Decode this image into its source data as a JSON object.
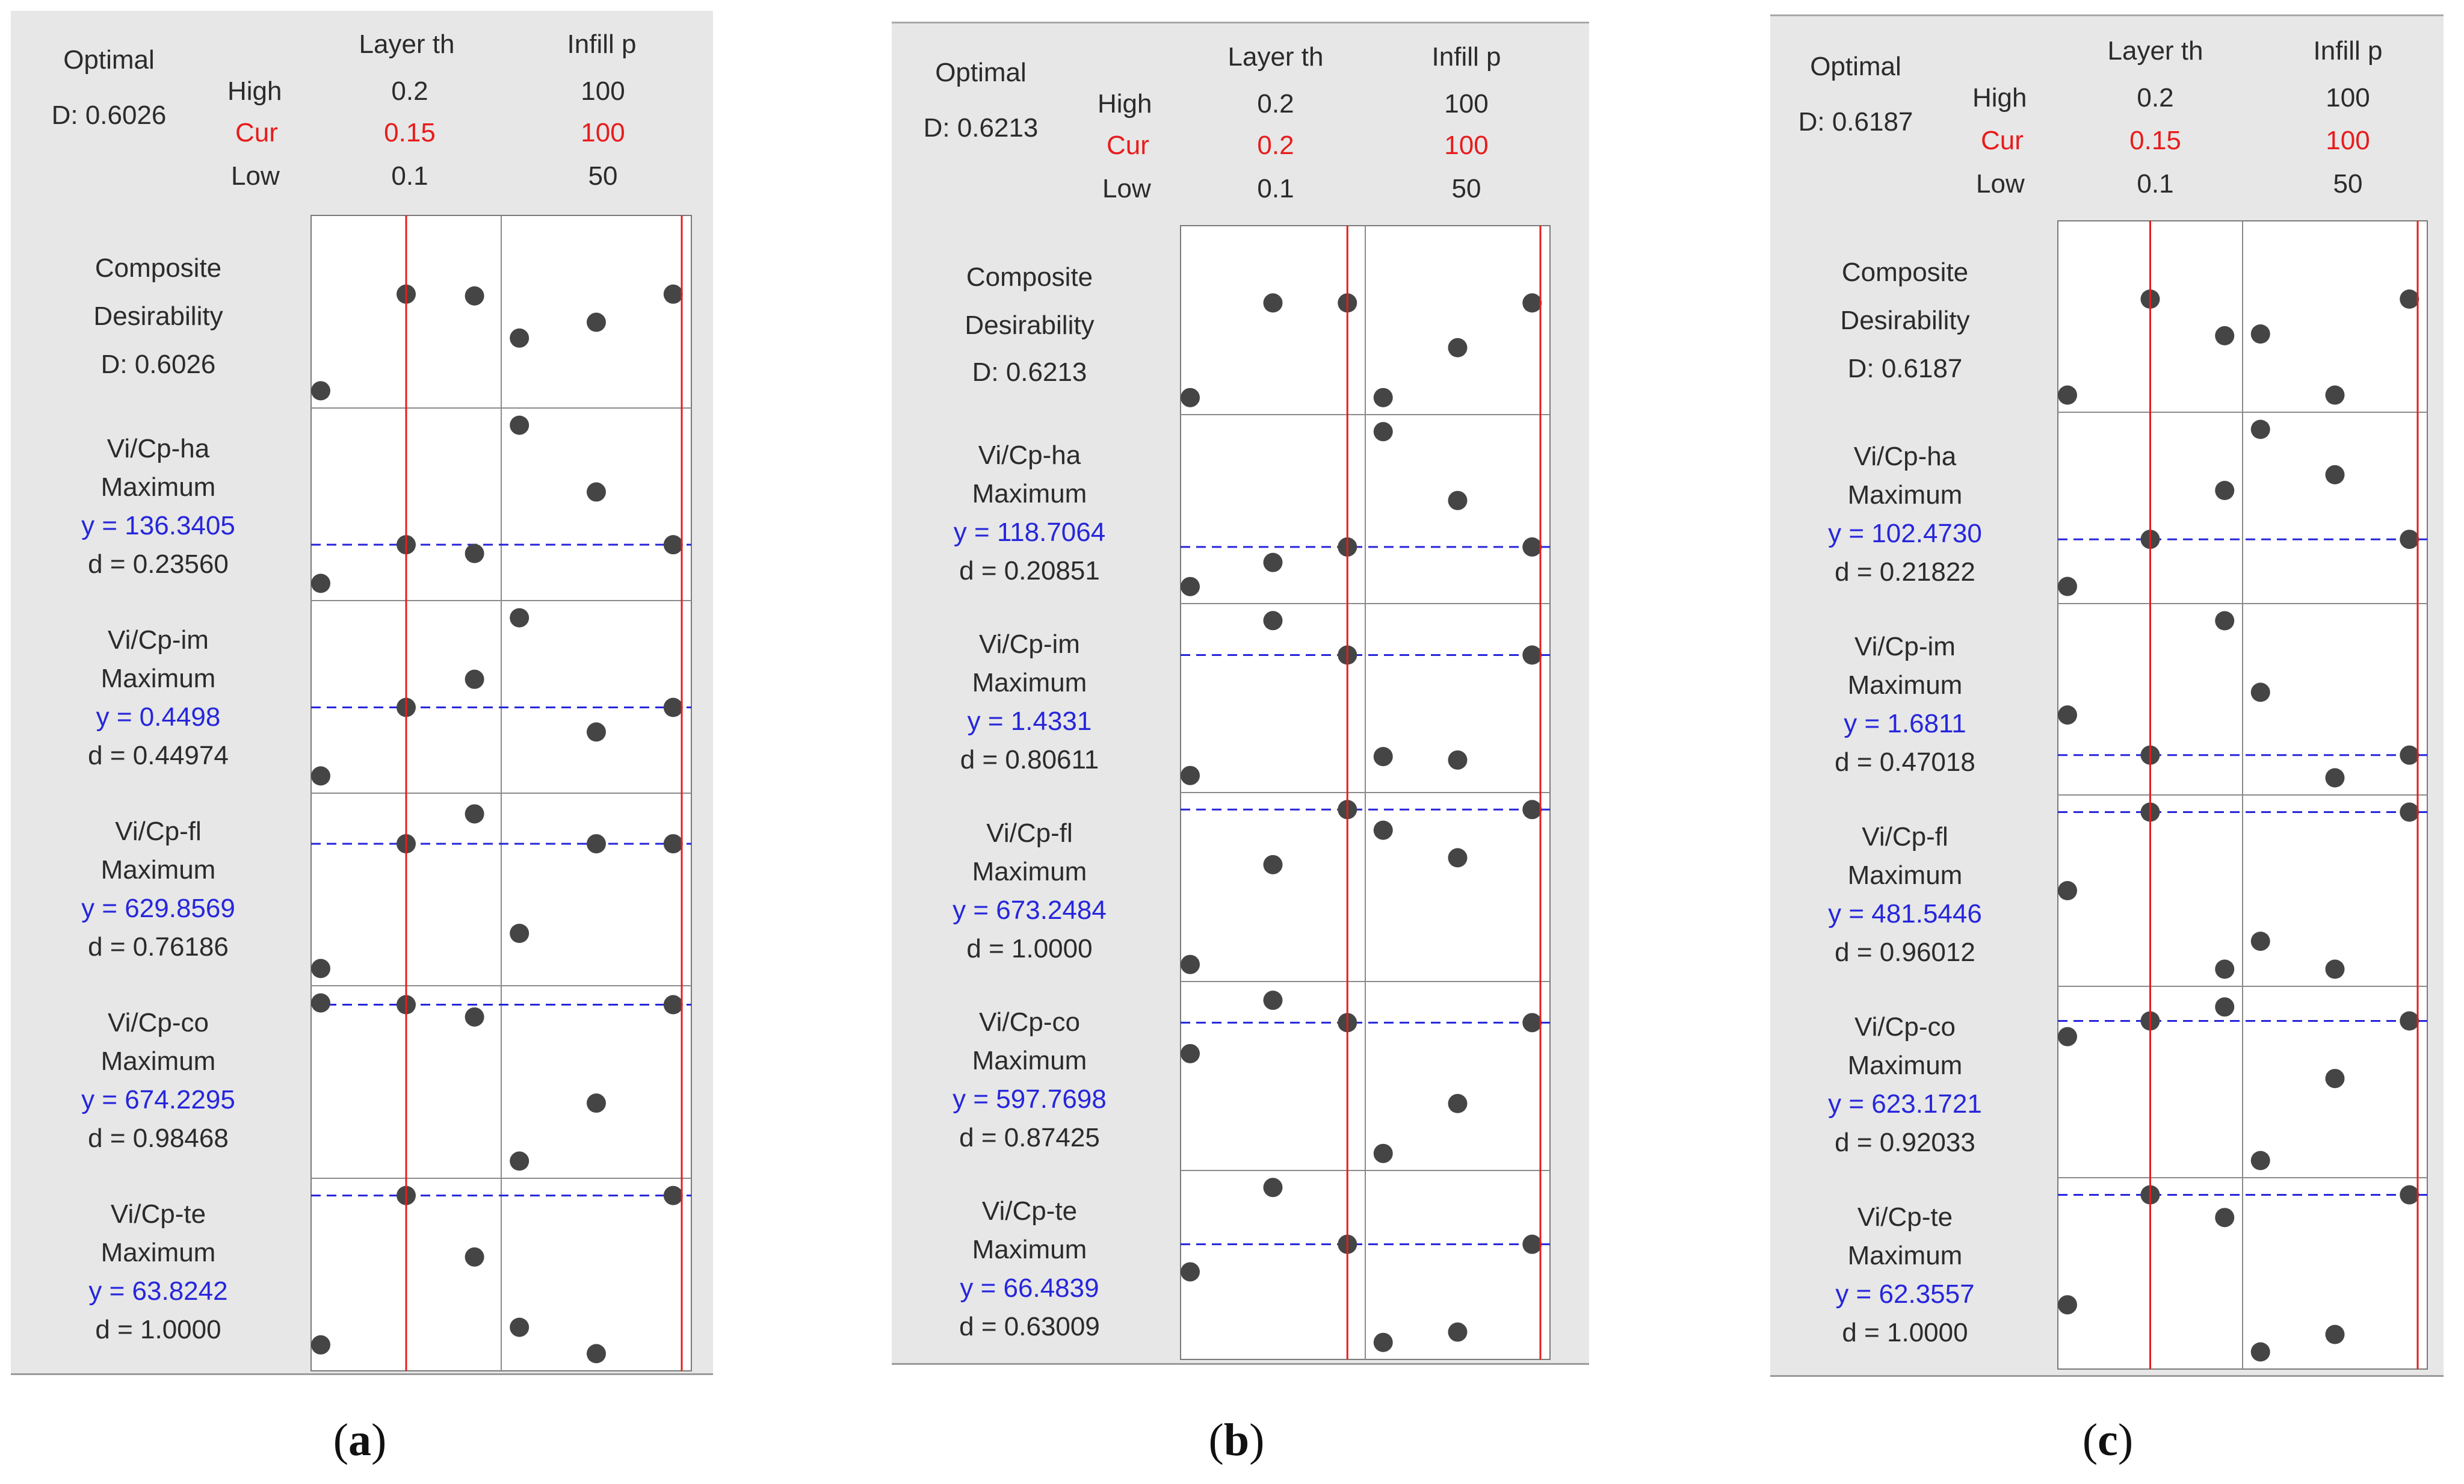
{
  "headers": {
    "optimal": "Optimal",
    "high": "High",
    "cur": "Cur",
    "low": "Low",
    "factor1": "Layer th",
    "factor2": "Infill p"
  },
  "colors": {
    "panel_bg": "#e7e7e7",
    "current_line": "#e81c1c",
    "target_line": "#2626dc",
    "point": "#454545",
    "text": "#2b2b2b"
  },
  "chart_data": [
    {
      "type": "scatter",
      "caption_letter": "a",
      "optimal_d": "D: 0.6026",
      "factors": {
        "layer_th": {
          "high": "0.2",
          "cur": "0.15",
          "low": "0.1"
        },
        "infill_p": {
          "high": "100",
          "cur": "100",
          "low": "50"
        }
      },
      "current_fraction": {
        "layer": 0.5,
        "infill": 1.0
      },
      "rows": [
        {
          "label": [
            "Composite",
            "Desirability"
          ],
          "value_text": "D: 0.6026",
          "composite": true,
          "target": null,
          "points": [
            {
              "p": "L",
              "x": 0,
              "y": 0.05
            },
            {
              "p": "L",
              "x": 0.5,
              "y": 0.6
            },
            {
              "p": "L",
              "x": 0.9,
              "y": 0.59
            },
            {
              "p": "R",
              "x": 0.05,
              "y": 0.35
            },
            {
              "p": "R",
              "x": 0.5,
              "y": 0.44
            },
            {
              "p": "R",
              "x": 0.95,
              "y": 0.6
            }
          ]
        },
        {
          "label": [
            "Vi/Cp-ha",
            "Maximum"
          ],
          "y_text": "y = 136.3405",
          "d_text": "d = 0.23560",
          "target": 0.27,
          "points": [
            {
              "p": "L",
              "x": 0,
              "y": 0.05
            },
            {
              "p": "L",
              "x": 0.5,
              "y": 0.27
            },
            {
              "p": "L",
              "x": 0.9,
              "y": 0.22
            },
            {
              "p": "R",
              "x": 0.05,
              "y": 0.95
            },
            {
              "p": "R",
              "x": 0.5,
              "y": 0.57
            },
            {
              "p": "R",
              "x": 0.95,
              "y": 0.27
            }
          ]
        },
        {
          "label": [
            "Vi/Cp-im",
            "Maximum"
          ],
          "y_text": "y = 0.4498",
          "d_text": "d = 0.44974",
          "target": 0.44,
          "points": [
            {
              "p": "L",
              "x": 0,
              "y": 0.05
            },
            {
              "p": "L",
              "x": 0.5,
              "y": 0.44
            },
            {
              "p": "L",
              "x": 0.9,
              "y": 0.6
            },
            {
              "p": "R",
              "x": 0.05,
              "y": 0.95
            },
            {
              "p": "R",
              "x": 0.5,
              "y": 0.3
            },
            {
              "p": "R",
              "x": 0.95,
              "y": 0.44
            }
          ]
        },
        {
          "label": [
            "Vi/Cp-fl",
            "Maximum"
          ],
          "y_text": "y = 629.8569",
          "d_text": "d = 0.76186",
          "target": 0.76,
          "points": [
            {
              "p": "L",
              "x": 0,
              "y": 0.05
            },
            {
              "p": "L",
              "x": 0.5,
              "y": 0.76
            },
            {
              "p": "L",
              "x": 0.9,
              "y": 0.93
            },
            {
              "p": "R",
              "x": 0.05,
              "y": 0.25
            },
            {
              "p": "R",
              "x": 0.5,
              "y": 0.76
            },
            {
              "p": "R",
              "x": 0.95,
              "y": 0.76
            }
          ]
        },
        {
          "label": [
            "Vi/Cp-co",
            "Maximum"
          ],
          "y_text": "y = 674.2295",
          "d_text": "d = 0.98468",
          "target": 0.94,
          "points": [
            {
              "p": "L",
              "x": 0,
              "y": 0.95
            },
            {
              "p": "L",
              "x": 0.5,
              "y": 0.94
            },
            {
              "p": "L",
              "x": 0.9,
              "y": 0.87
            },
            {
              "p": "R",
              "x": 0.05,
              "y": 0.05
            },
            {
              "p": "R",
              "x": 0.5,
              "y": 0.38
            },
            {
              "p": "R",
              "x": 0.95,
              "y": 0.94
            }
          ]
        },
        {
          "label": [
            "Vi/Cp-te",
            "Maximum"
          ],
          "y_text": "y = 63.8242",
          "d_text": "d = 1.0000",
          "target": 0.95,
          "points": [
            {
              "p": "L",
              "x": 0,
              "y": 0.1
            },
            {
              "p": "L",
              "x": 0.5,
              "y": 0.95
            },
            {
              "p": "L",
              "x": 0.9,
              "y": 0.6
            },
            {
              "p": "R",
              "x": 0.05,
              "y": 0.2
            },
            {
              "p": "R",
              "x": 0.5,
              "y": 0.05
            },
            {
              "p": "R",
              "x": 0.95,
              "y": 0.95
            }
          ]
        }
      ]
    },
    {
      "type": "scatter",
      "caption_letter": "b",
      "optimal_d": "D: 0.6213",
      "factors": {
        "layer_th": {
          "high": "0.2",
          "cur": "0.2",
          "low": "0.1"
        },
        "infill_p": {
          "high": "100",
          "cur": "100",
          "low": "50"
        }
      },
      "current_fraction": {
        "layer": 0.95,
        "infill": 1.0
      },
      "rows": [
        {
          "label": [
            "Composite",
            "Desirability"
          ],
          "value_text": "D: 0.6213",
          "composite": true,
          "target": null,
          "points": [
            {
              "p": "L",
              "x": 0,
              "y": 0.05
            },
            {
              "p": "L",
              "x": 0.5,
              "y": 0.6
            },
            {
              "p": "L",
              "x": 0.95,
              "y": 0.6
            },
            {
              "p": "R",
              "x": 0.05,
              "y": 0.05
            },
            {
              "p": "R",
              "x": 0.5,
              "y": 0.34
            },
            {
              "p": "R",
              "x": 0.95,
              "y": 0.6
            }
          ]
        },
        {
          "label": [
            "Vi/Cp-ha",
            "Maximum"
          ],
          "y_text": "y = 118.7064",
          "d_text": "d = 0.20851",
          "target": 0.28,
          "points": [
            {
              "p": "L",
              "x": 0,
              "y": 0.05
            },
            {
              "p": "L",
              "x": 0.5,
              "y": 0.19
            },
            {
              "p": "L",
              "x": 0.95,
              "y": 0.28
            },
            {
              "p": "R",
              "x": 0.05,
              "y": 0.95
            },
            {
              "p": "R",
              "x": 0.5,
              "y": 0.55
            },
            {
              "p": "R",
              "x": 0.95,
              "y": 0.28
            }
          ]
        },
        {
          "label": [
            "Vi/Cp-im",
            "Maximum"
          ],
          "y_text": "y = 1.4331",
          "d_text": "d = 0.80611",
          "target": 0.75,
          "points": [
            {
              "p": "L",
              "x": 0,
              "y": 0.05
            },
            {
              "p": "L",
              "x": 0.5,
              "y": 0.95
            },
            {
              "p": "L",
              "x": 0.95,
              "y": 0.75
            },
            {
              "p": "R",
              "x": 0.05,
              "y": 0.16
            },
            {
              "p": "R",
              "x": 0.5,
              "y": 0.14
            },
            {
              "p": "R",
              "x": 0.95,
              "y": 0.75
            }
          ]
        },
        {
          "label": [
            "Vi/Cp-fl",
            "Maximum"
          ],
          "y_text": "y = 673.2484",
          "d_text": "d = 1.0000",
          "target": 0.95,
          "points": [
            {
              "p": "L",
              "x": 0,
              "y": 0.05
            },
            {
              "p": "L",
              "x": 0.5,
              "y": 0.63
            },
            {
              "p": "L",
              "x": 0.95,
              "y": 0.95
            },
            {
              "p": "R",
              "x": 0.05,
              "y": 0.83
            },
            {
              "p": "R",
              "x": 0.5,
              "y": 0.67
            },
            {
              "p": "R",
              "x": 0.95,
              "y": 0.95
            }
          ]
        },
        {
          "label": [
            "Vi/Cp-co",
            "Maximum"
          ],
          "y_text": "y = 597.7698",
          "d_text": "d = 0.87425",
          "target": 0.81,
          "points": [
            {
              "p": "L",
              "x": 0,
              "y": 0.63
            },
            {
              "p": "L",
              "x": 0.5,
              "y": 0.94
            },
            {
              "p": "L",
              "x": 0.95,
              "y": 0.81
            },
            {
              "p": "R",
              "x": 0.05,
              "y": 0.05
            },
            {
              "p": "R",
              "x": 0.5,
              "y": 0.34
            },
            {
              "p": "R",
              "x": 0.95,
              "y": 0.81
            }
          ]
        },
        {
          "label": [
            "Vi/Cp-te",
            "Maximum"
          ],
          "y_text": "y = 66.4839",
          "d_text": "d = 0.63009",
          "target": 0.62,
          "points": [
            {
              "p": "L",
              "x": 0,
              "y": 0.46
            },
            {
              "p": "L",
              "x": 0.5,
              "y": 0.95
            },
            {
              "p": "L",
              "x": 0.95,
              "y": 0.62
            },
            {
              "p": "R",
              "x": 0.05,
              "y": 0.05
            },
            {
              "p": "R",
              "x": 0.5,
              "y": 0.11
            },
            {
              "p": "R",
              "x": 0.95,
              "y": 0.62
            }
          ]
        }
      ]
    },
    {
      "type": "scatter",
      "caption_letter": "c",
      "optimal_d": "D: 0.6187",
      "factors": {
        "layer_th": {
          "high": "0.2",
          "cur": "0.15",
          "low": "0.1"
        },
        "infill_p": {
          "high": "100",
          "cur": "100",
          "low": "50"
        }
      },
      "current_fraction": {
        "layer": 0.5,
        "infill": 1.0
      },
      "rows": [
        {
          "label": [
            "Composite",
            "Desirability"
          ],
          "value_text": "D: 0.6187",
          "composite": true,
          "target": null,
          "points": [
            {
              "p": "L",
              "x": 0,
              "y": 0.05
            },
            {
              "p": "L",
              "x": 0.5,
              "y": 0.6
            },
            {
              "p": "L",
              "x": 0.95,
              "y": 0.39
            },
            {
              "p": "R",
              "x": 0.05,
              "y": 0.4
            },
            {
              "p": "R",
              "x": 0.5,
              "y": 0.05
            },
            {
              "p": "R",
              "x": 0.95,
              "y": 0.6
            }
          ]
        },
        {
          "label": [
            "Vi/Cp-ha",
            "Maximum"
          ],
          "y_text": "y = 102.4730",
          "d_text": "d = 0.21822",
          "target": 0.32,
          "points": [
            {
              "p": "L",
              "x": 0,
              "y": 0.05
            },
            {
              "p": "L",
              "x": 0.5,
              "y": 0.32
            },
            {
              "p": "L",
              "x": 0.95,
              "y": 0.6
            },
            {
              "p": "R",
              "x": 0.05,
              "y": 0.95
            },
            {
              "p": "R",
              "x": 0.5,
              "y": 0.69
            },
            {
              "p": "R",
              "x": 0.95,
              "y": 0.32
            }
          ]
        },
        {
          "label": [
            "Vi/Cp-im",
            "Maximum"
          ],
          "y_text": "y = 1.6811",
          "d_text": "d = 0.47018",
          "target": 0.18,
          "points": [
            {
              "p": "L",
              "x": 0,
              "y": 0.41
            },
            {
              "p": "L",
              "x": 0.5,
              "y": 0.18
            },
            {
              "p": "L",
              "x": 0.95,
              "y": 0.95
            },
            {
              "p": "R",
              "x": 0.05,
              "y": 0.54
            },
            {
              "p": "R",
              "x": 0.5,
              "y": 0.05
            },
            {
              "p": "R",
              "x": 0.95,
              "y": 0.18
            }
          ]
        },
        {
          "label": [
            "Vi/Cp-fl",
            "Maximum"
          ],
          "y_text": "y = 481.5446",
          "d_text": "d = 0.96012",
          "target": 0.95,
          "points": [
            {
              "p": "L",
              "x": 0,
              "y": 0.5
            },
            {
              "p": "L",
              "x": 0.5,
              "y": 0.95
            },
            {
              "p": "L",
              "x": 0.95,
              "y": 0.05
            },
            {
              "p": "R",
              "x": 0.05,
              "y": 0.21
            },
            {
              "p": "R",
              "x": 0.5,
              "y": 0.05
            },
            {
              "p": "R",
              "x": 0.95,
              "y": 0.95
            }
          ]
        },
        {
          "label": [
            "Vi/Cp-co",
            "Maximum"
          ],
          "y_text": "y = 623.1721",
          "d_text": "d = 0.92033",
          "target": 0.85,
          "points": [
            {
              "p": "L",
              "x": 0,
              "y": 0.76
            },
            {
              "p": "L",
              "x": 0.5,
              "y": 0.85
            },
            {
              "p": "L",
              "x": 0.95,
              "y": 0.93
            },
            {
              "p": "R",
              "x": 0.05,
              "y": 0.05
            },
            {
              "p": "R",
              "x": 0.5,
              "y": 0.52
            },
            {
              "p": "R",
              "x": 0.95,
              "y": 0.85
            }
          ]
        },
        {
          "label": [
            "Vi/Cp-te",
            "Maximum"
          ],
          "y_text": "y = 62.3557",
          "d_text": "d = 1.0000",
          "target": 0.95,
          "points": [
            {
              "p": "L",
              "x": 0,
              "y": 0.32
            },
            {
              "p": "L",
              "x": 0.5,
              "y": 0.95
            },
            {
              "p": "L",
              "x": 0.95,
              "y": 0.82
            },
            {
              "p": "R",
              "x": 0.05,
              "y": 0.05
            },
            {
              "p": "R",
              "x": 0.5,
              "y": 0.15
            },
            {
              "p": "R",
              "x": 0.95,
              "y": 0.95
            }
          ]
        }
      ]
    }
  ]
}
